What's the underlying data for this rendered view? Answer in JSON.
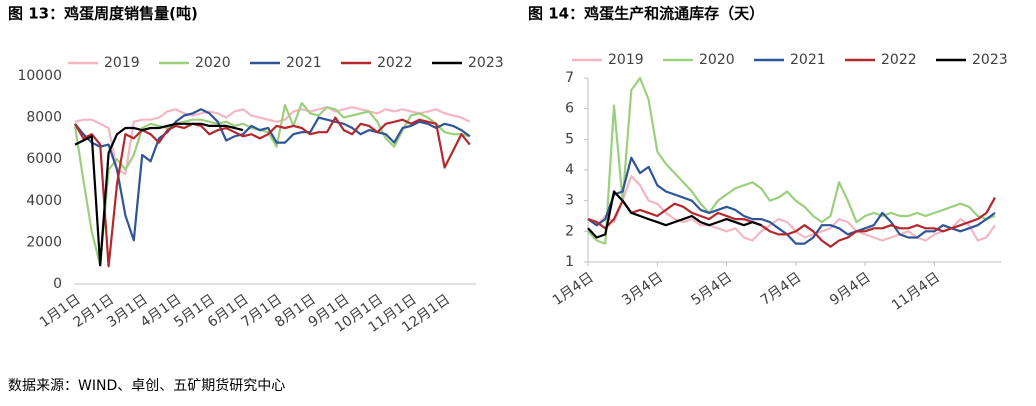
{
  "chart_data": [
    {
      "type": "line",
      "title": "图 13：鸡蛋周度销售量(吨)",
      "categories": [
        "1月1日",
        null,
        null,
        null,
        "2月1日",
        null,
        null,
        null,
        "3月1日",
        null,
        null,
        null,
        "4月1日",
        null,
        null,
        null,
        "5月1日",
        null,
        null,
        null,
        "6月1日",
        null,
        null,
        null,
        "7月1日",
        null,
        null,
        null,
        "8月1日",
        null,
        null,
        null,
        "9月1日",
        null,
        null,
        null,
        "10月1日",
        null,
        null,
        null,
        "11月1日",
        null,
        null,
        null,
        "12月1日",
        null,
        null,
        null
      ],
      "ylim": [
        0,
        10000
      ],
      "yticks": [
        0,
        2000,
        4000,
        6000,
        8000,
        10000
      ],
      "series": [
        {
          "name": "2019",
          "color": "#f4b6c2",
          "values": [
            7800,
            7900,
            7900,
            7700,
            7500,
            5500,
            5300,
            7800,
            7900,
            7900,
            8000,
            8300,
            8400,
            8200,
            8100,
            8200,
            8300,
            8200,
            8000,
            8300,
            8400,
            8100,
            8000,
            7900,
            7800,
            7900,
            8300,
            8400,
            8300,
            8400,
            8500,
            8300,
            8400,
            8500,
            8400,
            8300,
            8200,
            8400,
            8300,
            8400,
            8300,
            8200,
            8300,
            8400,
            8200,
            8100,
            8000,
            7800
          ]
        },
        {
          "name": "2020",
          "color": "#9bcf7e",
          "values": [
            7600,
            5000,
            2500,
            900,
            5500,
            6000,
            5500,
            6200,
            7500,
            7700,
            7600,
            7500,
            7700,
            7800,
            7900,
            7900,
            7800,
            7700,
            7800,
            7600,
            7700,
            7500,
            7400,
            7300,
            6600,
            8600,
            7600,
            8700,
            8200,
            8100,
            8500,
            8400,
            8000,
            8100,
            8200,
            8300,
            7800,
            7000,
            6600,
            7400,
            8100,
            8200,
            8000,
            7700,
            7300,
            7200,
            7200,
            7100
          ]
        },
        {
          "name": "2021",
          "color": "#2e5597",
          "values": [
            7700,
            7200,
            6800,
            6600,
            6700,
            5500,
            3300,
            2100,
            6200,
            5900,
            7000,
            7300,
            7800,
            8100,
            8200,
            8400,
            8200,
            7800,
            6900,
            7100,
            7200,
            7600,
            7400,
            7500,
            6800,
            6800,
            7200,
            7300,
            7300,
            8000,
            7900,
            7800,
            7700,
            7500,
            7200,
            7400,
            7300,
            7200,
            6800,
            7500,
            7600,
            7800,
            7700,
            7500,
            7700,
            7600,
            7400,
            7100
          ]
        },
        {
          "name": "2022",
          "color": "#b3282d",
          "values": [
            7700,
            7000,
            7200,
            6700,
            850,
            4800,
            7200,
            7000,
            7400,
            7200,
            6800,
            7400,
            7600,
            7500,
            7700,
            7600,
            7200,
            7400,
            7500,
            7300,
            7100,
            7200,
            7000,
            7200,
            7600,
            7500,
            7600,
            7500,
            7200,
            7300,
            7300,
            8000,
            7400,
            7200,
            7700,
            7600,
            7300,
            7700,
            7800,
            7900,
            7700,
            7900,
            7800,
            7700,
            5600,
            6400,
            7200,
            6700
          ]
        },
        {
          "name": "2023",
          "color": "#000000",
          "values": [
            6700,
            6900,
            7100,
            900,
            6300,
            7200,
            7500,
            7500,
            7400,
            7500,
            7500,
            7600,
            7700,
            7700,
            7700,
            7700,
            7600,
            7600,
            7600,
            7500,
            7400,
            null,
            null,
            null,
            null,
            null,
            null,
            null,
            null,
            null,
            null,
            null,
            null,
            null,
            null,
            null,
            null,
            null,
            null,
            null,
            null,
            null,
            null,
            null,
            null,
            null,
            null,
            null
          ]
        }
      ]
    },
    {
      "type": "line",
      "title": "图 14：鸡蛋生产和流通库存（天）",
      "categories": [
        "1月4日",
        null,
        null,
        null,
        null,
        null,
        null,
        null,
        "3月4日",
        null,
        null,
        null,
        null,
        null,
        null,
        null,
        "5月4日",
        null,
        null,
        null,
        null,
        null,
        null,
        null,
        "7月4日",
        null,
        null,
        null,
        null,
        null,
        null,
        null,
        "9月4日",
        null,
        null,
        null,
        null,
        null,
        null,
        null,
        "11月4日",
        null,
        null,
        null,
        null,
        null,
        null,
        null
      ],
      "ylim": [
        1,
        7
      ],
      "yticks": [
        1,
        2,
        3,
        4,
        5,
        6,
        7
      ],
      "series": [
        {
          "name": "2019",
          "color": "#f4b6c2",
          "values": [
            2.4,
            2.2,
            2.5,
            2.3,
            3.0,
            3.8,
            3.5,
            3.0,
            2.9,
            2.6,
            2.4,
            2.3,
            2.4,
            2.2,
            2.2,
            2.1,
            2.0,
            2.1,
            1.8,
            1.7,
            2.0,
            2.2,
            2.4,
            2.3,
            2.0,
            1.8,
            1.9,
            2.0,
            2.1,
            2.4,
            2.3,
            2.0,
            1.9,
            1.8,
            1.7,
            1.8,
            1.9,
            2.0,
            1.8,
            1.7,
            1.9,
            2.0,
            2.1,
            2.4,
            2.2,
            1.7,
            1.8,
            2.2
          ]
        },
        {
          "name": "2020",
          "color": "#9bcf7e",
          "values": [
            2.0,
            1.7,
            1.6,
            6.1,
            3.0,
            6.6,
            7.0,
            6.3,
            4.6,
            4.2,
            3.9,
            3.6,
            3.3,
            2.9,
            2.6,
            3.0,
            3.2,
            3.4,
            3.5,
            3.6,
            3.4,
            3.0,
            3.1,
            3.3,
            3.0,
            2.8,
            2.5,
            2.3,
            2.5,
            3.6,
            3.0,
            2.3,
            2.5,
            2.6,
            2.5,
            2.6,
            2.5,
            2.5,
            2.6,
            2.5,
            2.6,
            2.7,
            2.8,
            2.9,
            2.8,
            2.5,
            2.4,
            2.5
          ]
        },
        {
          "name": "2021",
          "color": "#2e5597",
          "values": [
            2.4,
            2.2,
            2.4,
            3.2,
            3.3,
            4.4,
            3.9,
            4.1,
            3.5,
            3.3,
            3.2,
            3.1,
            3.0,
            2.7,
            2.6,
            2.7,
            2.8,
            2.7,
            2.5,
            2.4,
            2.4,
            2.3,
            2.1,
            1.9,
            1.6,
            1.6,
            1.8,
            2.2,
            2.2,
            2.1,
            1.9,
            2.0,
            2.1,
            2.2,
            2.6,
            2.3,
            1.9,
            1.8,
            1.8,
            2.0,
            2.0,
            2.2,
            2.1,
            2.0,
            2.1,
            2.2,
            2.4,
            2.6
          ]
        },
        {
          "name": "2022",
          "color": "#b3282d",
          "values": [
            2.4,
            2.3,
            2.1,
            2.4,
            3.0,
            2.6,
            2.7,
            2.6,
            2.5,
            2.7,
            2.9,
            2.8,
            2.6,
            2.5,
            2.4,
            2.6,
            2.5,
            2.4,
            2.4,
            2.3,
            2.2,
            2.0,
            1.9,
            1.9,
            2.0,
            2.2,
            2.0,
            1.7,
            1.5,
            1.7,
            1.8,
            2.0,
            2.0,
            2.1,
            2.1,
            2.2,
            2.1,
            2.1,
            2.2,
            2.1,
            2.1,
            2.0,
            2.1,
            2.2,
            2.3,
            2.4,
            2.6,
            3.1
          ]
        },
        {
          "name": "2023",
          "color": "#000000",
          "values": [
            2.1,
            1.8,
            1.9,
            3.3,
            3.0,
            2.6,
            2.5,
            2.4,
            2.3,
            2.2,
            2.3,
            2.4,
            2.5,
            2.3,
            2.2,
            2.3,
            2.4,
            2.3,
            2.2,
            2.3,
            2.2,
            null,
            null,
            null,
            null,
            null,
            null,
            null,
            null,
            null,
            null,
            null,
            null,
            null,
            null,
            null,
            null,
            null,
            null,
            null,
            null,
            null,
            null,
            null,
            null,
            null,
            null,
            null
          ]
        }
      ]
    }
  ],
  "footer": "数据来源：WIND、卓创、五矿期货研究中心"
}
